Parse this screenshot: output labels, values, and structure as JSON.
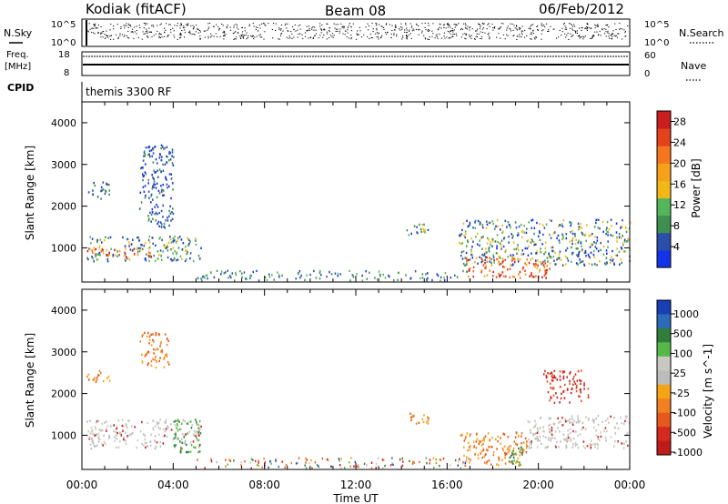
{
  "header": {
    "station": "Kodiak (fitACF)",
    "beam": "Beam 08",
    "date": "06/Feb/2012"
  },
  "panel_labels": {
    "nsky": "N.Sky",
    "nsky_hi": "10^5",
    "nsky_lo": "10^0",
    "nsearch": "N.Search",
    "nsearch_hi": "10^5",
    "nsearch_lo": "10^0",
    "freq_line1": "Freq.",
    "freq_line2": "[MHz]",
    "freq_hi": "18",
    "freq_lo": "8",
    "nave": "Nave",
    "nave_hi": "60",
    "nave_lo": "0",
    "cpid": "CPID",
    "cpid_value": "themis 3300 RF"
  },
  "colors": {
    "power": [
      "#1433e6",
      "#2b4fa8",
      "#3f8f52",
      "#55b55a",
      "#f3b818",
      "#f6a11a",
      "#f5761e",
      "#e4411d",
      "#c81e1e"
    ],
    "velocity": [
      "#1a3fb5",
      "#2d6bb8",
      "#2f7f3a",
      "#57b84a",
      "#c8c8c0",
      "#bcbcbc",
      "#f5a418",
      "#f08020",
      "#e8581c",
      "#d42a1e",
      "#c01b1b"
    ]
  },
  "chart_data": [
    {
      "type": "heatmap",
      "name": "power",
      "xlabel": "Time UT",
      "ylabel": "Slant Range [km]",
      "x_ticks": [
        "00:00",
        "04:00",
        "08:00",
        "12:00",
        "16:00",
        "20:00",
        "00:00"
      ],
      "x_range_hours": [
        0,
        24
      ],
      "y_ticks": [
        1000,
        2000,
        3000,
        4000
      ],
      "ylim": [
        180,
        4500
      ],
      "colorbar_label": "Power [dB]",
      "colorbar_ticks": [
        4,
        8,
        12,
        16,
        20,
        24,
        28
      ],
      "regions": [
        {
          "t": [
            0.2,
            5.2
          ],
          "r": [
            700,
            1300
          ],
          "level": "mid"
        },
        {
          "t": [
            0.2,
            3.0
          ],
          "r": [
            800,
            1000
          ],
          "level": "high"
        },
        {
          "t": [
            0.2,
            1.2
          ],
          "r": [
            2200,
            2600
          ],
          "level": "low"
        },
        {
          "t": [
            2.5,
            4.0
          ],
          "r": [
            1500,
            3500
          ],
          "level": "low"
        },
        {
          "t": [
            14.2,
            15.2
          ],
          "r": [
            1300,
            1600
          ],
          "level": "mid"
        },
        {
          "t": [
            16.5,
            24.0
          ],
          "r": [
            600,
            1700
          ],
          "level": "mid"
        },
        {
          "t": [
            16.8,
            20.5
          ],
          "r": [
            300,
            800
          ],
          "level": "high"
        }
      ]
    },
    {
      "type": "heatmap",
      "name": "velocity",
      "xlabel": "Time UT",
      "ylabel": "Slant Range [km]",
      "x_ticks": [
        "00:00",
        "04:00",
        "08:00",
        "12:00",
        "16:00",
        "20:00",
        "00:00"
      ],
      "x_range_hours": [
        0,
        24
      ],
      "y_ticks": [
        1000,
        2000,
        3000,
        4000
      ],
      "ylim": [
        180,
        4500
      ],
      "colorbar_label": "Velocity [m s^-1]",
      "colorbar_ticks": [
        1000,
        500,
        100,
        25,
        -25,
        -100,
        -500,
        -1000
      ],
      "regions": [
        {
          "t": [
            0.2,
            5.2
          ],
          "r": [
            700,
            1400
          ],
          "level": "low-velocity"
        },
        {
          "t": [
            0.2,
            1.2
          ],
          "r": [
            2300,
            2600
          ],
          "level": "negative"
        },
        {
          "t": [
            2.5,
            3.8
          ],
          "r": [
            2600,
            3500
          ],
          "level": "negative"
        },
        {
          "t": [
            4.0,
            5.2
          ],
          "r": [
            600,
            1400
          ],
          "level": "positive"
        },
        {
          "t": [
            14.2,
            15.2
          ],
          "r": [
            1300,
            1600
          ],
          "level": "negative"
        },
        {
          "t": [
            16.5,
            19.5
          ],
          "r": [
            300,
            1100
          ],
          "level": "negative"
        },
        {
          "t": [
            18.7,
            19.3
          ],
          "r": [
            300,
            900
          ],
          "level": "positive"
        },
        {
          "t": [
            19.5,
            24.0
          ],
          "r": [
            700,
            1500
          ],
          "level": "low-velocity"
        },
        {
          "t": [
            20.2,
            22.2
          ],
          "r": [
            1800,
            2600
          ],
          "level": "strong-negative"
        }
      ]
    }
  ]
}
